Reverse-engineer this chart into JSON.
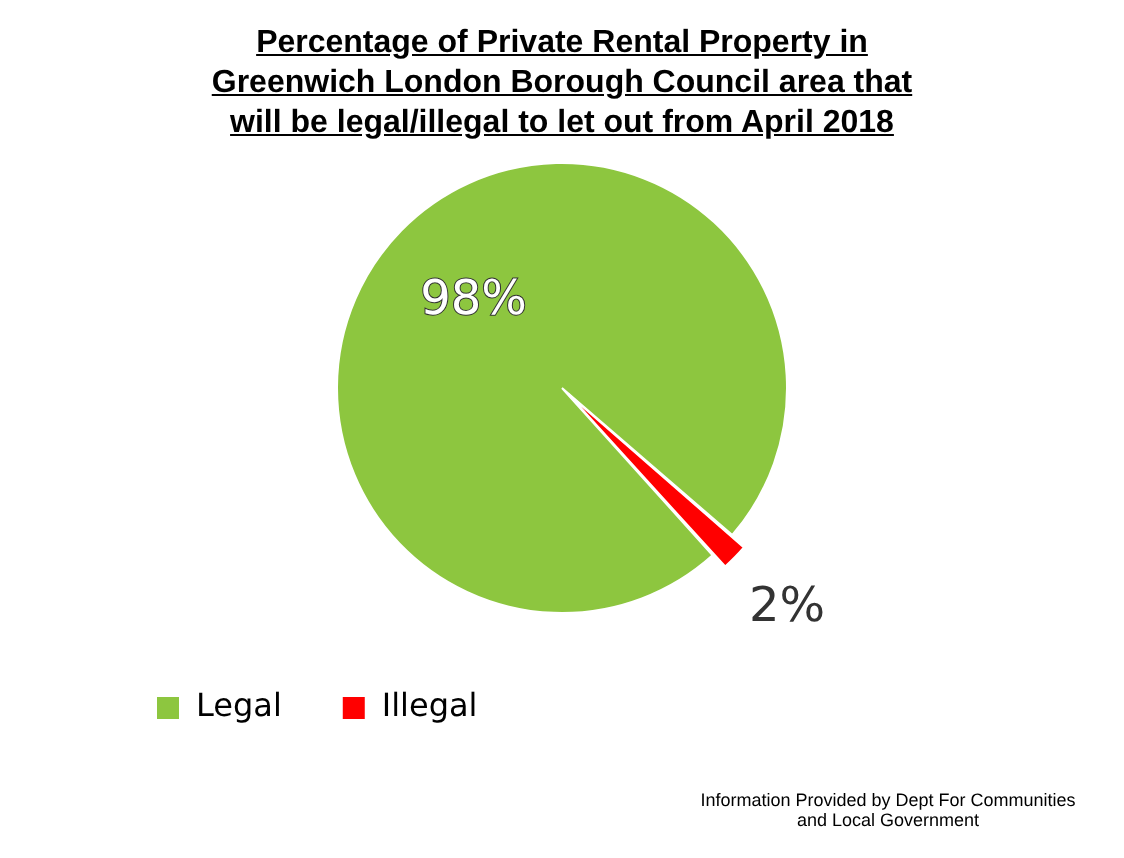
{
  "chart_data": {
    "type": "pie",
    "title": "Percentage of Private Rental Property in Greenwich London Borough Council area that will be legal/illegal to let out from April 2018",
    "categories": [
      "Legal",
      "Illegal"
    ],
    "values": [
      98,
      2
    ],
    "colors": [
      "#8dc63f",
      "#ff0000"
    ],
    "value_labels": [
      "98%",
      "2%"
    ],
    "legend": "bottom left",
    "annotations": [
      "Information Provided by Dept For Communities and Local Government"
    ]
  }
}
